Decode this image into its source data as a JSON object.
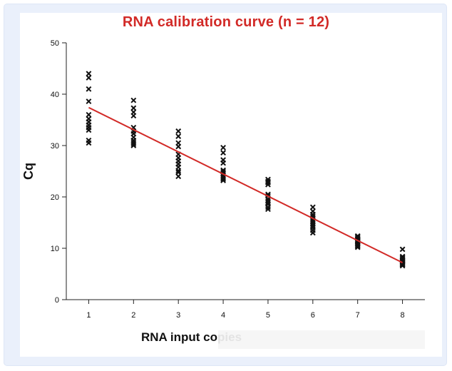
{
  "chart_data": {
    "type": "scatter",
    "title": "RNA calibration curve (n = 12)",
    "xlabel": "RNA input copies",
    "ylabel": "Cq",
    "xlim": [
      0.5,
      8.5
    ],
    "ylim": [
      0,
      50
    ],
    "xticks": [
      1,
      2,
      3,
      4,
      5,
      6,
      7,
      8
    ],
    "yticks": [
      0,
      10,
      20,
      30,
      40,
      50
    ],
    "grid": false,
    "marker": "x",
    "marker_color": "#111111",
    "line_color": "#d22a27",
    "points": [
      {
        "x": 1,
        "ys": [
          44,
          43.2,
          41,
          38.6,
          36,
          35.2,
          34.6,
          34,
          33.5,
          33,
          31,
          30.5
        ]
      },
      {
        "x": 2,
        "ys": [
          38.8,
          37.3,
          36.5,
          35.8,
          33.5,
          32.8,
          32.3,
          31.6,
          31,
          30.6,
          30,
          30.3
        ]
      },
      {
        "x": 3,
        "ys": [
          32.8,
          31.8,
          30.5,
          29.8,
          28.3,
          27.6,
          27,
          26.4,
          25.8,
          25.1,
          24.8,
          24
        ]
      },
      {
        "x": 4,
        "ys": [
          29.6,
          28.6,
          27.2,
          26.6,
          25.2,
          24.6,
          24.2,
          23.8,
          23.5,
          23.2,
          23.5,
          24.9
        ]
      },
      {
        "x": 5,
        "ys": [
          23.4,
          23,
          22.4,
          20.5,
          19.6,
          19.2,
          18.6,
          18,
          17.6,
          20.2,
          22.8,
          18.9
        ]
      },
      {
        "x": 6,
        "ys": [
          18,
          17.2,
          16.6,
          15.8,
          15.2,
          14.8,
          14.4,
          14,
          13.5,
          13,
          16.2,
          15.5
        ]
      },
      {
        "x": 7,
        "ys": [
          12.4,
          12,
          11.6,
          11.2,
          10.9,
          10.6,
          10.4,
          10.2,
          11.8,
          11.4,
          10.8,
          12.2
        ]
      },
      {
        "x": 8,
        "ys": [
          9.8,
          8.4,
          8,
          7.6,
          7.2,
          7,
          6.8,
          6.6,
          7.4,
          8.2,
          7.8,
          6.9
        ]
      }
    ],
    "fit_line": {
      "x": [
        1,
        8
      ],
      "y": [
        37.4,
        7.2
      ]
    }
  }
}
